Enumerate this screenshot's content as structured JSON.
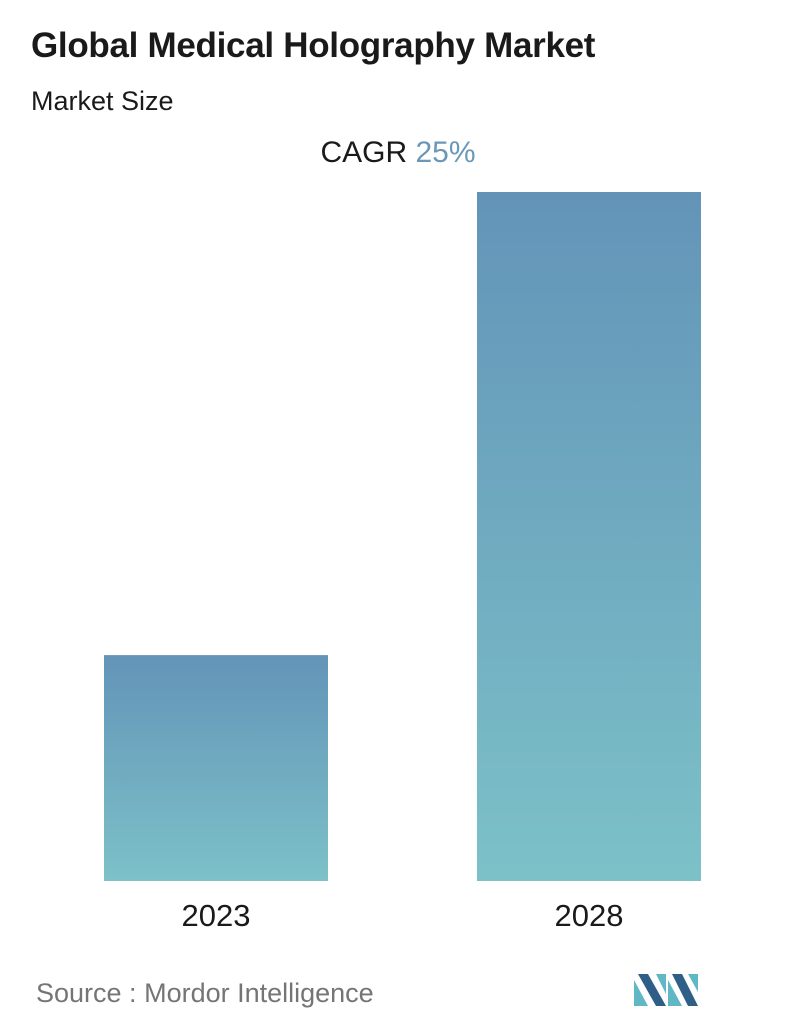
{
  "header": {
    "title": "Global Medical Holography Market",
    "subtitle": "Market Size",
    "cagr_label": "CAGR",
    "cagr_value": "25%"
  },
  "chart_data": {
    "type": "bar",
    "categories": [
      "2023",
      "2028"
    ],
    "values": [
      1,
      3.05
    ],
    "title": "Global Medical Holography Market",
    "xlabel": "",
    "ylabel": "",
    "ylim": [
      0,
      3.05
    ],
    "grid": false,
    "legend": "none"
  },
  "footer": {
    "source_label": "Source :",
    "source_name": "Mordor Intelligence"
  },
  "colors": {
    "bar_top": "#6394b8",
    "bar_bottom": "#7cc1c8",
    "accent": "#6b98b8",
    "logo_dark": "#2f5f86",
    "logo_light": "#5fb8c4"
  },
  "logo": {
    "icon": "mordor-intelligence-logo-icon"
  }
}
